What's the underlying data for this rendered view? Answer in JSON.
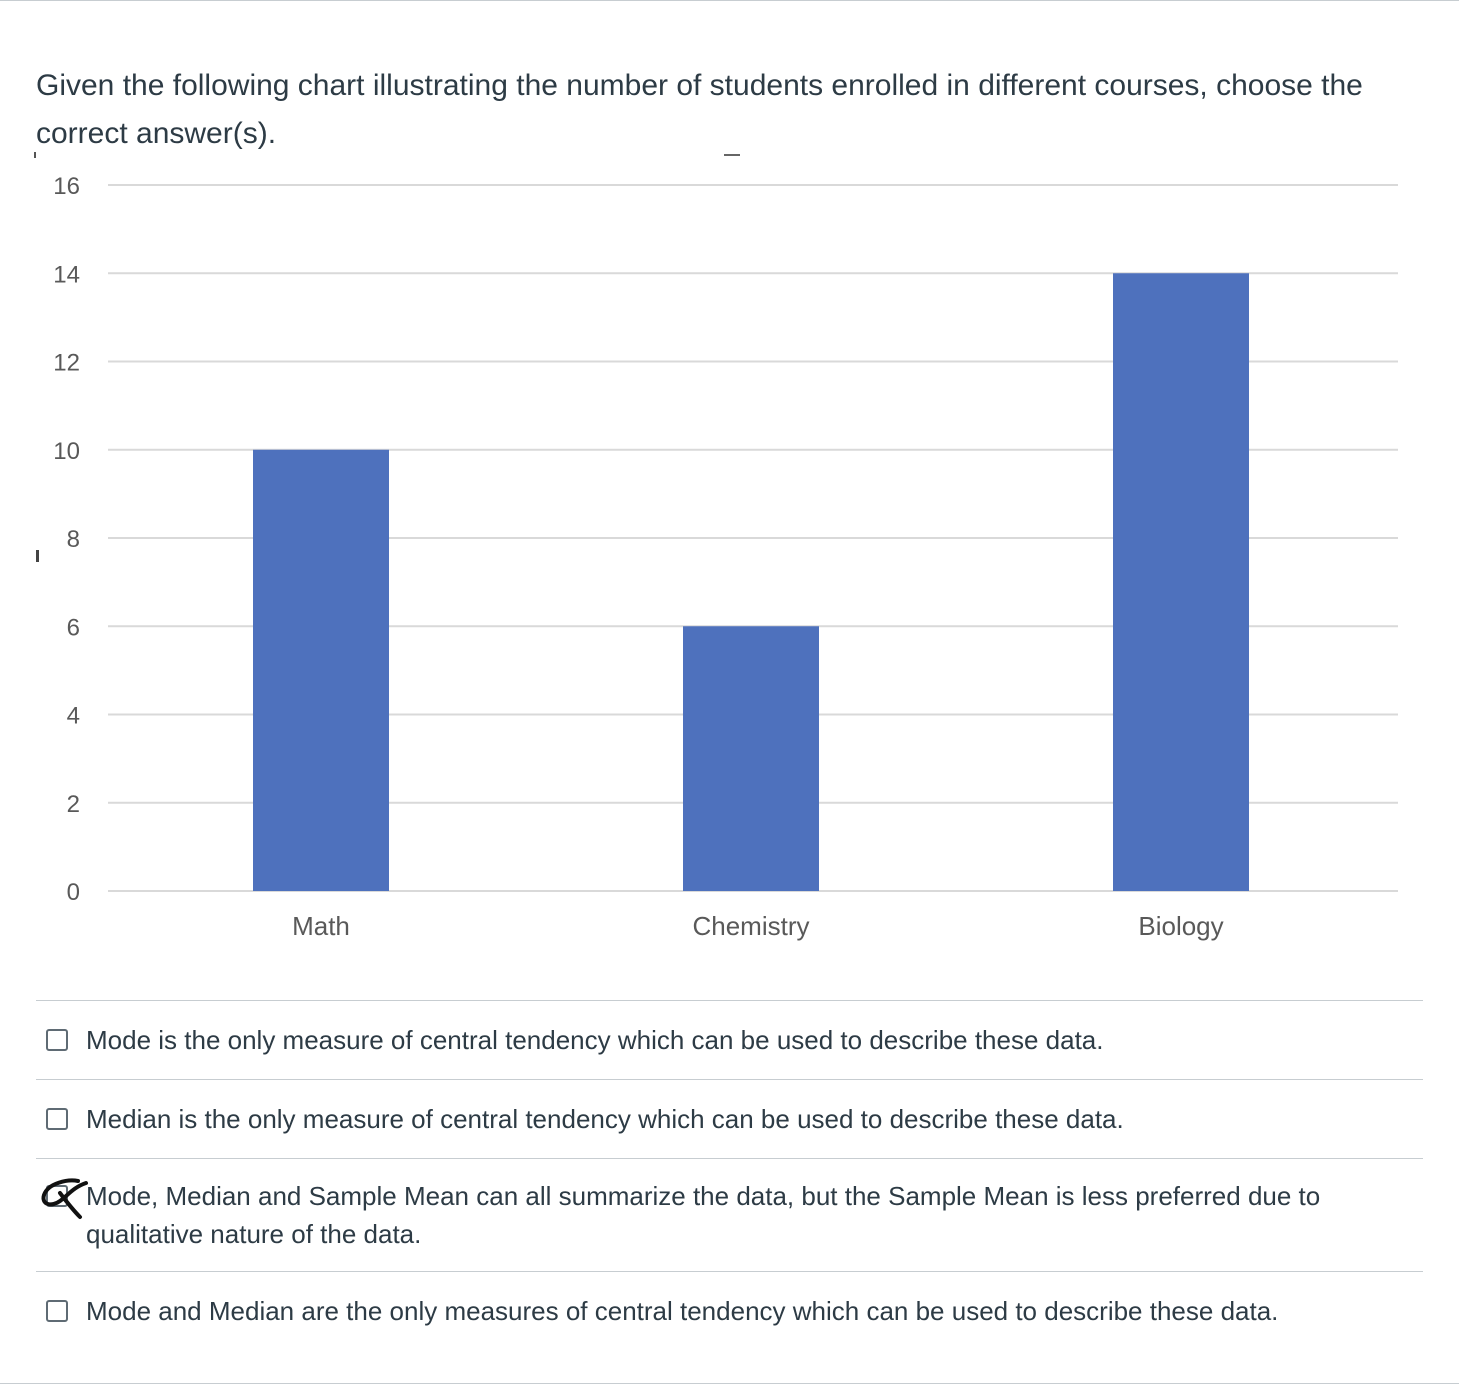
{
  "question": {
    "text": "Given the following chart illustrating the number of students enrolled in different courses, choose the correct answer(s)."
  },
  "chart_data": {
    "type": "bar",
    "categories": [
      "Math",
      "Chemistry",
      "Biology"
    ],
    "values": [
      10,
      6,
      14
    ],
    "ylim": [
      0,
      16
    ],
    "yticks": [
      0,
      2,
      4,
      6,
      8,
      10,
      12,
      14,
      16
    ],
    "grid": true,
    "bar_color": "#4e71bd",
    "title": "",
    "xlabel": "",
    "ylabel": ""
  },
  "answers": [
    {
      "label": "Mode is the only measure of central tendency which can be used to describe these data.",
      "checked": false
    },
    {
      "label": "Median is the only measure of central tendency which can be used to describe these data.",
      "checked": false
    },
    {
      "label": "Mode, Median and Sample Mean can all summarize the data, but the Sample Mean is less preferred due to qualitative nature of the data.",
      "checked": false,
      "handwritten_mark": true
    },
    {
      "label": "Mode and Median are the only measures of central tendency which can be used to describe these data.",
      "checked": false
    }
  ],
  "colors": {
    "text": "#2d3b45",
    "divider": "#c7cdd1",
    "bar": "#4e71bd",
    "gridline": "#d9d9d9",
    "axis_text": "#595959"
  }
}
